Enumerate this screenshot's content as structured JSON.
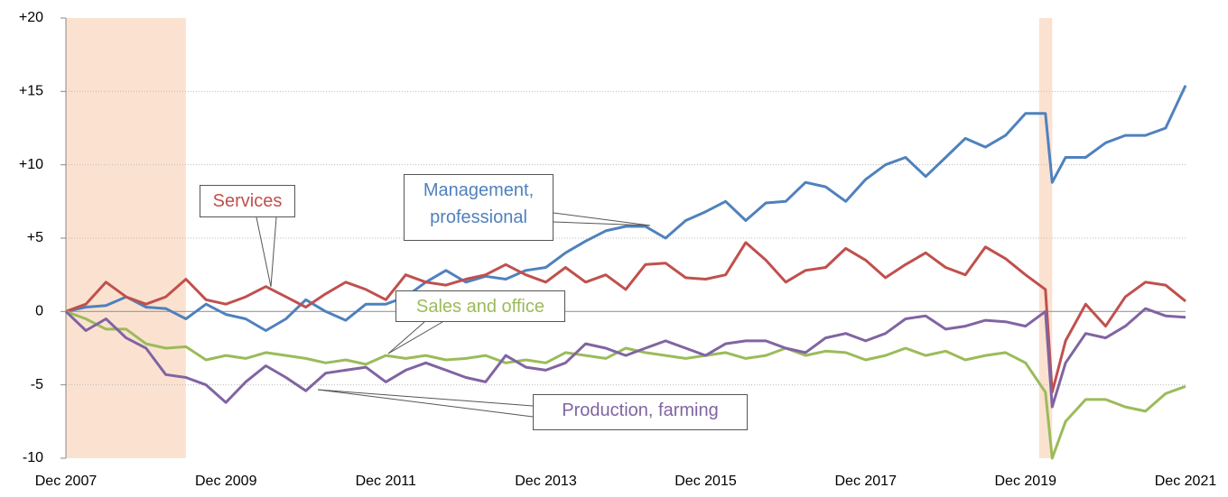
{
  "chart_data": {
    "type": "line",
    "x": [
      "Dec 2007",
      "Mar 2008",
      "Jun 2008",
      "Sep 2008",
      "Dec 2008",
      "Mar 2009",
      "Jun 2009",
      "Sep 2009",
      "Dec 2009",
      "Mar 2010",
      "Jun 2010",
      "Sep 2010",
      "Dec 2010",
      "Mar 2011",
      "Jun 2011",
      "Sep 2011",
      "Dec 2011",
      "Mar 2012",
      "Jun 2012",
      "Sep 2012",
      "Dec 2012",
      "Mar 2013",
      "Jun 2013",
      "Sep 2013",
      "Dec 2013",
      "Mar 2014",
      "Jun 2014",
      "Sep 2014",
      "Dec 2014",
      "Mar 2015",
      "Jun 2015",
      "Sep 2015",
      "Dec 2015",
      "Mar 2016",
      "Jun 2016",
      "Sep 2016",
      "Dec 2016",
      "Mar 2017",
      "Jun 2017",
      "Sep 2017",
      "Dec 2017",
      "Mar 2018",
      "Jun 2018",
      "Sep 2018",
      "Dec 2018",
      "Mar 2019",
      "Jun 2019",
      "Sep 2019",
      "Dec 2019",
      "Mar 2020",
      "Apr 2020",
      "Jun 2020",
      "Sep 2020",
      "Dec 2020",
      "Mar 2021",
      "Jun 2021",
      "Sep 2021",
      "Dec 2021"
    ],
    "series": [
      {
        "name": "Management, professional",
        "color": "#4f81bd",
        "values": [
          0,
          0.3,
          0.4,
          1.0,
          0.3,
          0.2,
          -0.5,
          0.5,
          -0.2,
          -0.5,
          -1.3,
          -0.5,
          0.8,
          0,
          -0.6,
          0.5,
          0.5,
          1.0,
          2.0,
          2.8,
          2.0,
          2.4,
          2.2,
          2.8,
          3.0,
          4.0,
          4.8,
          5.5,
          5.8,
          5.8,
          5.0,
          6.2,
          6.8,
          7.5,
          6.2,
          7.4,
          7.5,
          8.8,
          8.5,
          7.5,
          9.0,
          10.0,
          10.5,
          9.2,
          10.5,
          11.8,
          11.2,
          12.0,
          13.5,
          13.5,
          8.8,
          10.5,
          10.5,
          11.5,
          12.0,
          12.0,
          12.5,
          15.4
        ]
      },
      {
        "name": "Services",
        "color": "#c0504d",
        "values": [
          0,
          0.5,
          2.0,
          1.0,
          0.5,
          1.0,
          2.2,
          0.8,
          0.5,
          1.0,
          1.7,
          1.0,
          0.3,
          1.2,
          2.0,
          1.5,
          0.8,
          2.5,
          2.0,
          1.8,
          2.2,
          2.5,
          3.2,
          2.5,
          2.0,
          3.0,
          2.0,
          2.5,
          1.5,
          3.2,
          3.3,
          2.3,
          2.2,
          2.5,
          4.7,
          3.5,
          2.0,
          2.8,
          3.0,
          4.3,
          3.5,
          2.3,
          3.2,
          4.0,
          3.0,
          2.5,
          4.4,
          3.6,
          2.5,
          1.5,
          -5.5,
          -2.0,
          0.5,
          -1.0,
          1.0,
          2.0,
          1.8,
          0.7
        ]
      },
      {
        "name": "Sales and office",
        "color": "#9bbb59",
        "values": [
          0,
          -0.5,
          -1.2,
          -1.2,
          -2.2,
          -2.5,
          -2.4,
          -3.3,
          -3.0,
          -3.2,
          -2.8,
          -3.0,
          -3.2,
          -3.5,
          -3.3,
          -3.6,
          -3.0,
          -3.2,
          -3.0,
          -3.3,
          -3.2,
          -3.0,
          -3.5,
          -3.3,
          -3.5,
          -2.8,
          -3.0,
          -3.2,
          -2.5,
          -2.8,
          -3.0,
          -3.2,
          -3.0,
          -2.8,
          -3.2,
          -3.0,
          -2.5,
          -3.0,
          -2.7,
          -2.8,
          -3.3,
          -3.0,
          -2.5,
          -3.0,
          -2.7,
          -3.3,
          -3.0,
          -2.8,
          -3.5,
          -5.5,
          -10.0,
          -7.5,
          -6.0,
          -6.0,
          -6.5,
          -6.8,
          -5.6,
          -5.1
        ]
      },
      {
        "name": "Production, farming",
        "color": "#8064a2",
        "values": [
          0,
          -1.3,
          -0.5,
          -1.8,
          -2.5,
          -4.3,
          -4.5,
          -5.0,
          -6.2,
          -4.8,
          -3.7,
          -4.5,
          -5.4,
          -4.2,
          -4.0,
          -3.8,
          -4.8,
          -4.0,
          -3.5,
          -4.0,
          -4.5,
          -4.8,
          -3.0,
          -3.8,
          -4.0,
          -3.5,
          -2.2,
          -2.5,
          -3.0,
          -2.5,
          -2.0,
          -2.5,
          -3.0,
          -2.2,
          -2.0,
          -2.0,
          -2.5,
          -2.8,
          -1.8,
          -1.5,
          -2.0,
          -1.5,
          -0.5,
          -0.3,
          -1.2,
          -1.0,
          -0.6,
          -0.7,
          -1.0,
          0.0,
          -6.5,
          -3.5,
          -1.5,
          -1.8,
          -1.0,
          0.2,
          -0.3,
          -0.4
        ]
      }
    ],
    "xlim": [
      "Dec 2007",
      "Dec 2021"
    ],
    "xticks": [
      "Dec 2007",
      "Dec 2009",
      "Dec 2011",
      "Dec 2013",
      "Dec 2015",
      "Dec 2017",
      "Dec 2019",
      "Dec 2021"
    ],
    "ylim": [
      -10,
      20
    ],
    "yticks": [
      {
        "value": 20,
        "label": "+20"
      },
      {
        "value": 15,
        "label": "+15"
      },
      {
        "value": 10,
        "label": "+10"
      },
      {
        "value": 5,
        "label": "+5"
      },
      0,
      -5,
      -10
    ],
    "grid": true,
    "shaded_periods": [
      {
        "start": "Dec 2007",
        "end": "Jun 2009",
        "color": "#fbe2d0"
      },
      {
        "start": "Feb 2020",
        "end": "Apr 2020",
        "color": "#fbe2d0"
      }
    ]
  }
}
